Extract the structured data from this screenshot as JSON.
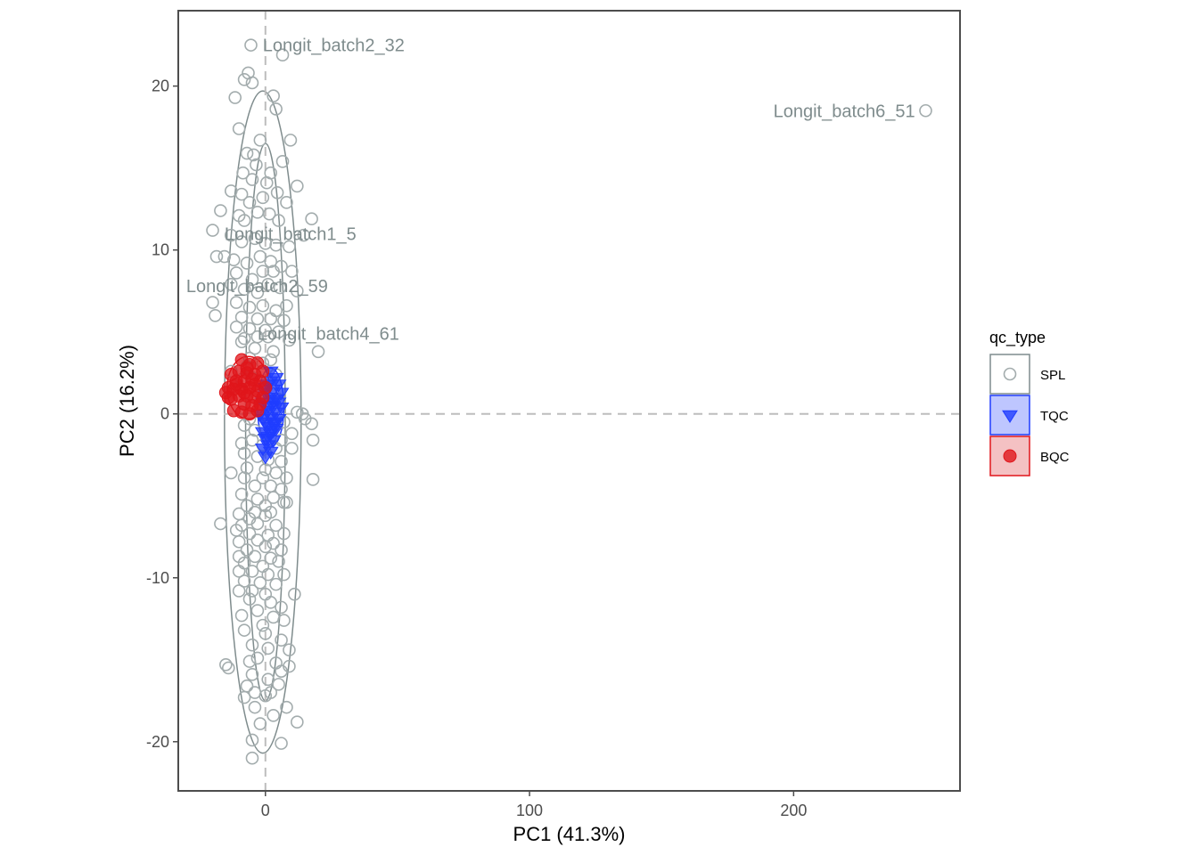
{
  "chart_data": {
    "type": "scatter",
    "title": "",
    "xlabel": "PC1 (41.3%)",
    "ylabel": "PC2 (16.2%)",
    "xlim": [
      -33,
      263
    ],
    "ylim": [
      -23,
      24.6
    ],
    "xticks": [
      0,
      100,
      200
    ],
    "yticks": [
      -20,
      -10,
      0,
      10,
      20
    ],
    "grid": false,
    "reference_lines": {
      "x": 0,
      "y": 0,
      "style": "dashed",
      "color": "#bdbdbd"
    },
    "legend": {
      "title": "qc_type",
      "placement": "right",
      "entries": [
        {
          "label": "SPL",
          "color": "#7f8c8d",
          "shape": "open-circle",
          "fill": "#ffffff"
        },
        {
          "label": "TQC",
          "color": "#1f3cff",
          "shape": "triangle-down",
          "fill": "#b3bcff"
        },
        {
          "label": "BQC",
          "color": "#e0151b",
          "shape": "circle",
          "fill": "#f2b6b8"
        }
      ]
    },
    "series": [
      {
        "name": "SPL",
        "color": "#7f8c8d",
        "points": [
          [
            -5.5,
            22.5
          ],
          [
            6.5,
            21.9
          ],
          [
            -6.5,
            20.8
          ],
          [
            -5,
            20.2
          ],
          [
            -8,
            20.4
          ],
          [
            -11.5,
            19.3
          ],
          [
            3,
            19.4
          ],
          [
            4,
            18.6
          ],
          [
            -10,
            17.4
          ],
          [
            -2,
            16.7
          ],
          [
            9.5,
            16.7
          ],
          [
            -7,
            15.9
          ],
          [
            -4.5,
            15.8
          ],
          [
            -3.5,
            15.2
          ],
          [
            6.5,
            15.4
          ],
          [
            -8.5,
            14.7
          ],
          [
            2,
            14.7
          ],
          [
            -5,
            14.3
          ],
          [
            0.5,
            14.1
          ],
          [
            -13,
            13.6
          ],
          [
            12,
            13.9
          ],
          [
            -9,
            13.4
          ],
          [
            -1,
            13.2
          ],
          [
            4.5,
            13.5
          ],
          [
            -6,
            12.9
          ],
          [
            8,
            12.9
          ],
          [
            -17,
            12.4
          ],
          [
            -10,
            12.1
          ],
          [
            -3,
            12.3
          ],
          [
            1.5,
            12.2
          ],
          [
            -8,
            11.8
          ],
          [
            5,
            11.8
          ],
          [
            17.5,
            11.9
          ],
          [
            -20,
            11.2
          ],
          [
            -13,
            10.9
          ],
          [
            -9,
            10.5
          ],
          [
            -4,
            10.7
          ],
          [
            0,
            10.4
          ],
          [
            4,
            10.3
          ],
          [
            9,
            10.2
          ],
          [
            14.5,
            10.9
          ],
          [
            -18.5,
            9.6
          ],
          [
            -15.5,
            9.6
          ],
          [
            -12,
            9.4
          ],
          [
            -7,
            9.2
          ],
          [
            -2,
            9.6
          ],
          [
            2,
            9.3
          ],
          [
            6,
            9.0
          ],
          [
            -11,
            8.6
          ],
          [
            -5,
            8.2
          ],
          [
            -1,
            8.7
          ],
          [
            3,
            8.7
          ],
          [
            10,
            8.7
          ],
          [
            -13,
            7.9
          ],
          [
            -8,
            7.6
          ],
          [
            -3,
            7.4
          ],
          [
            1,
            7.9
          ],
          [
            5.5,
            7.7
          ],
          [
            12,
            7.5
          ],
          [
            -20,
            6.8
          ],
          [
            -11,
            6.8
          ],
          [
            -6,
            6.5
          ],
          [
            -1,
            6.6
          ],
          [
            4,
            6.3
          ],
          [
            8,
            6.6
          ],
          [
            -19,
            6.0
          ],
          [
            -9,
            5.9
          ],
          [
            -3,
            5.8
          ],
          [
            2,
            5.8
          ],
          [
            7,
            5.7
          ],
          [
            -11,
            5.3
          ],
          [
            -6,
            5.2
          ],
          [
            0,
            5.1
          ],
          [
            5,
            5.0
          ],
          [
            -8,
            4.6
          ],
          [
            -3,
            4.7
          ],
          [
            1,
            4.7
          ],
          [
            9,
            4.5
          ],
          [
            -9,
            4.4
          ],
          [
            -4,
            4.0
          ],
          [
            3,
            3.8
          ],
          [
            20,
            3.8
          ],
          [
            -13,
            2.6
          ],
          [
            12,
            0.1
          ],
          [
            14,
            0.0
          ],
          [
            15,
            -0.3
          ],
          [
            17.5,
            -0.6
          ],
          [
            -8,
            -0.7
          ],
          [
            4,
            -0.7
          ],
          [
            10,
            -1.2
          ],
          [
            -5,
            -1.6
          ],
          [
            6,
            -1.6
          ],
          [
            18,
            -1.6
          ],
          [
            -9,
            -1.8
          ],
          [
            -1,
            -1.9
          ],
          [
            4,
            -2.1
          ],
          [
            10,
            -2.1
          ],
          [
            -8,
            -2.4
          ],
          [
            -3,
            -2.6
          ],
          [
            1,
            -2.8
          ],
          [
            6,
            -2.9
          ],
          [
            -7,
            -3.3
          ],
          [
            0,
            -3.4
          ],
          [
            4,
            -3.6
          ],
          [
            -13,
            -3.6
          ],
          [
            -1,
            -3.9
          ],
          [
            -8,
            -3.9
          ],
          [
            8,
            -3.9
          ],
          [
            18,
            -4.0
          ],
          [
            -4,
            -4.4
          ],
          [
            2,
            -4.4
          ],
          [
            6,
            -4.6
          ],
          [
            -9,
            -4.9
          ],
          [
            -3,
            -5.2
          ],
          [
            3,
            -5.1
          ],
          [
            -7,
            -5.6
          ],
          [
            0,
            -5.6
          ],
          [
            7,
            -5.4
          ],
          [
            -10,
            -6.1
          ],
          [
            -4,
            -6.0
          ],
          [
            2,
            -6.0
          ],
          [
            8,
            -5.4
          ],
          [
            -6,
            -6.4
          ],
          [
            0,
            -6.2
          ],
          [
            -17,
            -6.7
          ],
          [
            -9,
            -6.8
          ],
          [
            -3,
            -6.7
          ],
          [
            4,
            -6.8
          ],
          [
            -11,
            -7.1
          ],
          [
            -6,
            -7.3
          ],
          [
            1,
            -7.4
          ],
          [
            7,
            -7.3
          ],
          [
            -10,
            -7.8
          ],
          [
            -3,
            -7.7
          ],
          [
            3,
            -7.9
          ],
          [
            -7,
            -8.3
          ],
          [
            0,
            -8.1
          ],
          [
            6,
            -8.3
          ],
          [
            -10,
            -8.7
          ],
          [
            -4,
            -8.7
          ],
          [
            2,
            -8.8
          ],
          [
            -8,
            -9.1
          ],
          [
            -1,
            -9.3
          ],
          [
            5,
            -9.0
          ],
          [
            -10,
            -9.6
          ],
          [
            -5,
            -9.6
          ],
          [
            1,
            -9.8
          ],
          [
            7,
            -9.8
          ],
          [
            -8,
            -10.2
          ],
          [
            -2,
            -10.3
          ],
          [
            4,
            -10.4
          ],
          [
            -5,
            -10.8
          ],
          [
            0,
            -11.0
          ],
          [
            -10,
            -10.8
          ],
          [
            11,
            -11.0
          ],
          [
            -6,
            -11.3
          ],
          [
            2,
            -11.5
          ],
          [
            6,
            -11.8
          ],
          [
            -3,
            -12.0
          ],
          [
            3,
            -12.4
          ],
          [
            -9,
            -12.3
          ],
          [
            -1,
            -12.9
          ],
          [
            7,
            -12.6
          ],
          [
            -8,
            -13.2
          ],
          [
            0,
            -13.4
          ],
          [
            6,
            -13.8
          ],
          [
            -5,
            -14.1
          ],
          [
            1,
            -14.3
          ],
          [
            9,
            -14.4
          ],
          [
            -3,
            -14.9
          ],
          [
            -6,
            -15.1
          ],
          [
            4,
            -15.2
          ],
          [
            -15,
            -15.3
          ],
          [
            -14,
            -15.5
          ],
          [
            6,
            -15.7
          ],
          [
            9,
            -15.4
          ],
          [
            -5,
            -15.9
          ],
          [
            1,
            -16.2
          ],
          [
            -7,
            -16.6
          ],
          [
            5,
            -16.5
          ],
          [
            -4,
            -17.0
          ],
          [
            2,
            -17.0
          ],
          [
            -8,
            -17.3
          ],
          [
            0,
            -17.2
          ],
          [
            -4,
            -17.9
          ],
          [
            8,
            -17.9
          ],
          [
            3,
            -18.4
          ],
          [
            -2,
            -18.9
          ],
          [
            12,
            -18.8
          ],
          [
            -5,
            -19.9
          ],
          [
            6,
            -20.1
          ],
          [
            -5,
            -21.0
          ],
          [
            -7,
            2.9
          ],
          [
            -5,
            2.2
          ],
          [
            -10,
            1.6
          ],
          [
            -3,
            1.1
          ],
          [
            2,
            1.3
          ],
          [
            -8,
            0.6
          ],
          [
            5,
            0.9
          ],
          [
            -2,
            0.2
          ],
          [
            3,
            0.3
          ],
          [
            -6,
            -0.3
          ],
          [
            1,
            -0.2
          ],
          [
            -4,
            -1.0
          ],
          [
            7,
            -0.5
          ],
          [
            -1,
            3.1
          ],
          [
            4,
            2.4
          ],
          [
            -6,
            3.4
          ],
          [
            2,
            3.3
          ],
          [
            -9,
            2.1
          ],
          [
            250,
            18.5
          ]
        ]
      },
      {
        "name": "TQC",
        "color": "#1f3cff",
        "points": [
          [
            2,
            2.6
          ],
          [
            4,
            2.2
          ],
          [
            1,
            1.8
          ],
          [
            5,
            1.8
          ],
          [
            3,
            1.5
          ],
          [
            0,
            1.3
          ],
          [
            6,
            1.3
          ],
          [
            2,
            1.0
          ],
          [
            4,
            0.9
          ],
          [
            -1,
            0.7
          ],
          [
            3,
            0.5
          ],
          [
            6,
            0.4
          ],
          [
            1,
            0.2
          ],
          [
            4,
            0.1
          ],
          [
            -2,
            0.0
          ],
          [
            2,
            -0.2
          ],
          [
            5,
            -0.3
          ],
          [
            0,
            -0.5
          ],
          [
            3,
            -0.6
          ],
          [
            1,
            -0.8
          ],
          [
            4,
            -0.9
          ],
          [
            -1,
            -1.1
          ],
          [
            2,
            -1.2
          ],
          [
            0,
            -1.5
          ],
          [
            3,
            -1.6
          ],
          [
            1,
            -1.9
          ],
          [
            -1,
            -2.1
          ],
          [
            2,
            -2.3
          ],
          [
            0,
            -2.6
          ],
          [
            1,
            -1.4
          ],
          [
            3,
            0.8
          ],
          [
            0,
            1.6
          ],
          [
            5,
            0.7
          ],
          [
            2,
            2.0
          ],
          [
            -1,
            -0.3
          ],
          [
            4,
            -0.5
          ],
          [
            1,
            0.5
          ],
          [
            3,
            -1.0
          ]
        ]
      },
      {
        "name": "BQC",
        "color": "#e0151b",
        "points": [
          [
            -9,
            3.3
          ],
          [
            -6,
            3.0
          ],
          [
            -3,
            3.1
          ],
          [
            -10,
            2.6
          ],
          [
            -7,
            2.5
          ],
          [
            -4,
            2.4
          ],
          [
            -1,
            2.6
          ],
          [
            -13,
            2.4
          ],
          [
            -11,
            2.0
          ],
          [
            -8,
            2.0
          ],
          [
            -5,
            2.1
          ],
          [
            -2,
            2.0
          ],
          [
            -14,
            1.6
          ],
          [
            -12,
            1.5
          ],
          [
            -9,
            1.5
          ],
          [
            -6,
            1.6
          ],
          [
            -3,
            1.4
          ],
          [
            0,
            1.6
          ],
          [
            -15,
            1.3
          ],
          [
            -10,
            1.1
          ],
          [
            -7,
            1.1
          ],
          [
            -4,
            1.0
          ],
          [
            -1,
            1.0
          ],
          [
            -13,
            0.9
          ],
          [
            -8,
            0.6
          ],
          [
            -5,
            0.5
          ],
          [
            -2,
            0.6
          ],
          [
            -12,
            0.2
          ],
          [
            -9,
            0.1
          ],
          [
            -6,
            0.0
          ],
          [
            -3,
            0.2
          ],
          [
            -7,
            2.8
          ],
          [
            -11,
            1.8
          ],
          [
            -4,
            1.8
          ],
          [
            -8,
            1.3
          ],
          [
            -14,
            1.0
          ]
        ]
      }
    ],
    "ellipses": [
      {
        "series": "SPL",
        "cx": -1,
        "cy": -0.5,
        "rx": 14.5,
        "ry": 20.2,
        "color": "#7f8c8d"
      },
      {
        "series": "SPL",
        "cx": 0,
        "cy": -0.5,
        "rx": 7.5,
        "ry": 17,
        "color": "#7f8c8d"
      },
      {
        "series": "TQC",
        "cx": 2,
        "cy": 0.4,
        "rx": 5,
        "ry": 2.4,
        "color": "#1f3cff"
      },
      {
        "series": "BQC",
        "cx": -6.5,
        "cy": 1.6,
        "rx": 8,
        "ry": 1.9,
        "color": "#e0151b"
      }
    ],
    "annotations": [
      {
        "text": "Longit_batch2_32",
        "x": -1,
        "y": 22.5
      },
      {
        "text": "Longit_batch6_51",
        "x": 246,
        "y": 18.5,
        "anchor": "end"
      },
      {
        "text": "Longit_batch1_5",
        "x": -15.5,
        "y": 11.0
      },
      {
        "text": "Longit_batch2_59",
        "x": -30,
        "y": 7.8
      },
      {
        "text": "Longit_batch4_61",
        "x": -3,
        "y": 4.9
      }
    ]
  }
}
